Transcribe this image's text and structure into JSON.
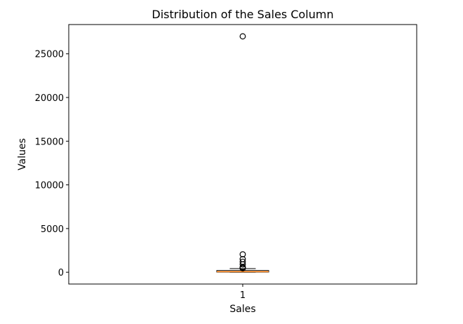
{
  "chart_data": {
    "type": "box",
    "title": "Distribution of the Sales Column",
    "xlabel": "Sales",
    "ylabel": "Values",
    "categories": [
      "1"
    ],
    "ylim": [
      -1350,
      28350
    ],
    "yticks": [
      0,
      5000,
      10000,
      15000,
      20000,
      25000
    ],
    "ytick_labels": [
      "0",
      "5000",
      "10000",
      "15000",
      "20000",
      "25000"
    ],
    "box": {
      "whisker_low": 0,
      "q1": 20,
      "median": 60,
      "q3": 200,
      "whisker_high": 420
    },
    "outliers": [
      450,
      520,
      600,
      900,
      1200,
      1500,
      2050,
      27000
    ],
    "grid": false,
    "colors": {
      "median": "#ff7f0e",
      "box": "#000000",
      "outlier": "#000000"
    }
  }
}
